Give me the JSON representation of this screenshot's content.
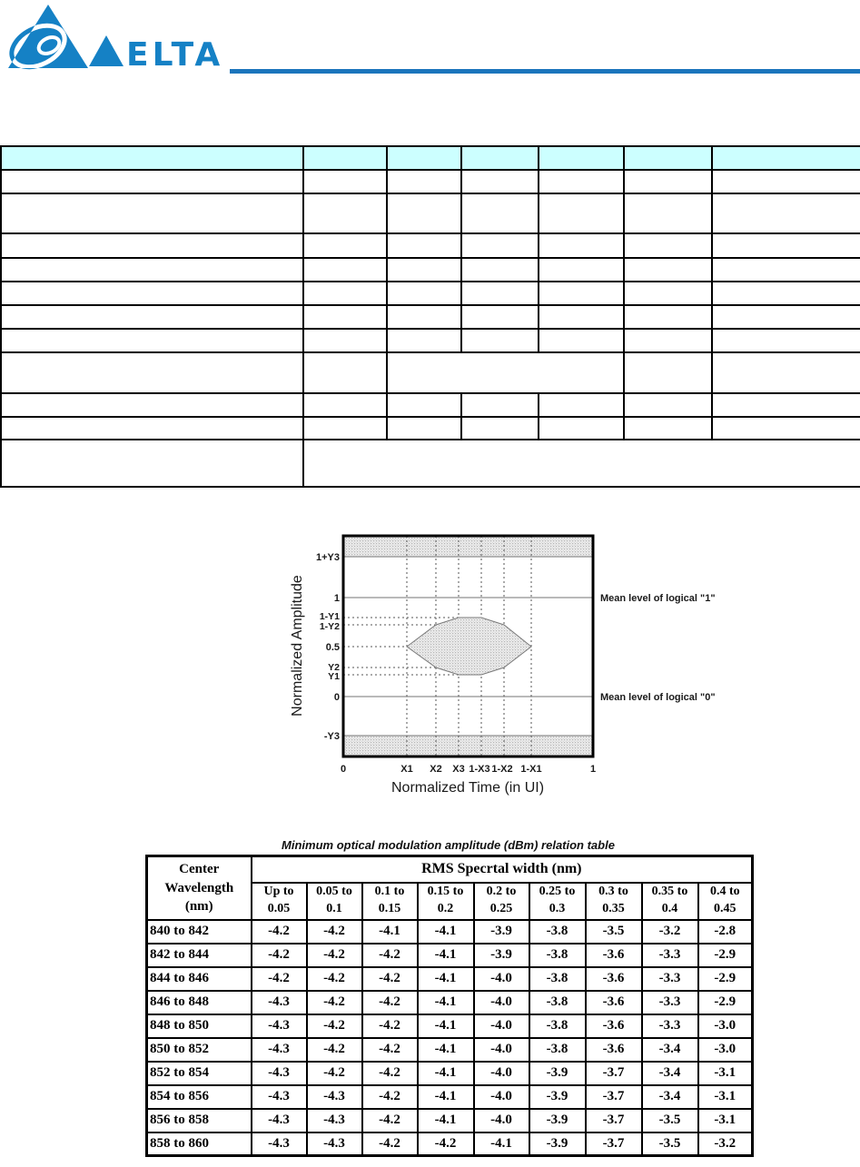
{
  "colors": {
    "brand_blue": "#1581c5",
    "rule_blue": "#1b75bc",
    "table_header_bg": "#ccffff"
  },
  "logo": {
    "brand": "ELTA"
  },
  "eye_diagram": {
    "type": "eye-mask-diagram",
    "ylabel": "Normalized Amplitude",
    "xlabel": "Normalized Time (in UI)",
    "y_ticks": [
      "1+Y3",
      "1",
      "1-Y1",
      "1-Y2",
      "0.5",
      "Y2",
      "Y1",
      "0",
      "-Y3"
    ],
    "x_ticks": [
      "0",
      "X1",
      "X2",
      "X3",
      "1-X3",
      "1-X2",
      "1-X1",
      "1"
    ],
    "annotation_logic1": "Mean level of logical \"1\"",
    "annotation_logic0": "Mean level of logical \"0\""
  },
  "oma_table": {
    "title": "Minimum optical modulation amplitude (dBm) relation table",
    "corner_header": "Center\nWavelength\n(nm)",
    "group_header": "RMS Specrtal width (nm)",
    "sub_headers": [
      "Up to\n0.05",
      "0.05 to\n0.1",
      "0.1 to\n0.15",
      "0.15 to\n0.2",
      "0.2 to\n0.25",
      "0.25 to\n0.3",
      "0.3 to\n0.35",
      "0.35 to\n0.4",
      "0.4 to\n0.45"
    ],
    "rows": [
      {
        "range": "840 to 842",
        "values": [
          "-4.2",
          "-4.2",
          "-4.1",
          "-4.1",
          "-3.9",
          "-3.8",
          "-3.5",
          "-3.2",
          "-2.8"
        ]
      },
      {
        "range": "842 to 844",
        "values": [
          "-4.2",
          "-4.2",
          "-4.2",
          "-4.1",
          "-3.9",
          "-3.8",
          "-3.6",
          "-3.3",
          "-2.9"
        ]
      },
      {
        "range": "844 to 846",
        "values": [
          "-4.2",
          "-4.2",
          "-4.2",
          "-4.1",
          "-4.0",
          "-3.8",
          "-3.6",
          "-3.3",
          "-2.9"
        ]
      },
      {
        "range": "846 to 848",
        "values": [
          "-4.3",
          "-4.2",
          "-4.2",
          "-4.1",
          "-4.0",
          "-3.8",
          "-3.6",
          "-3.3",
          "-2.9"
        ]
      },
      {
        "range": "848 to 850",
        "values": [
          "-4.3",
          "-4.2",
          "-4.2",
          "-4.1",
          "-4.0",
          "-3.8",
          "-3.6",
          "-3.3",
          "-3.0"
        ]
      },
      {
        "range": "850 to 852",
        "values": [
          "-4.3",
          "-4.2",
          "-4.2",
          "-4.1",
          "-4.0",
          "-3.8",
          "-3.6",
          "-3.4",
          "-3.0"
        ]
      },
      {
        "range": "852 to 854",
        "values": [
          "-4.3",
          "-4.2",
          "-4.2",
          "-4.1",
          "-4.0",
          "-3.9",
          "-3.7",
          "-3.4",
          "-3.1"
        ]
      },
      {
        "range": "854 to 856",
        "values": [
          "-4.3",
          "-4.3",
          "-4.2",
          "-4.1",
          "-4.0",
          "-3.9",
          "-3.7",
          "-3.4",
          "-3.1"
        ]
      },
      {
        "range": "856 to 858",
        "values": [
          "-4.3",
          "-4.3",
          "-4.2",
          "-4.1",
          "-4.0",
          "-3.9",
          "-3.7",
          "-3.5",
          "-3.1"
        ]
      },
      {
        "range": "858 to 860",
        "values": [
          "-4.3",
          "-4.3",
          "-4.2",
          "-4.2",
          "-4.1",
          "-3.9",
          "-3.7",
          "-3.5",
          "-3.2"
        ]
      }
    ]
  }
}
